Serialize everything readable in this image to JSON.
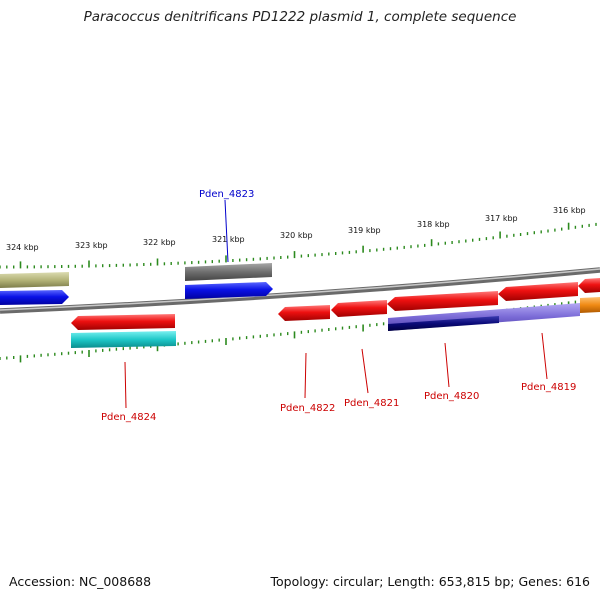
{
  "title": "Paracoccus denitrificans PD1222 plasmid 1, complete sequence",
  "footer": {
    "accession": "Accession: NC_008688",
    "summary": "Topology: circular; Length: 653,815 bp; Genes: 616"
  },
  "scale_labels": [
    "324 kbp",
    "323 kbp",
    "322 kbp",
    "321 kbp",
    "320 kbp",
    "319 kbp",
    "318 kbp",
    "317 kbp",
    "316 kbp"
  ],
  "gene_labels": [
    {
      "text": "Pden_4823",
      "color": "#0000cc"
    },
    {
      "text": "Pden_4824",
      "color": "#cc0000"
    },
    {
      "text": "Pden_4822",
      "color": "#cc0000"
    },
    {
      "text": "Pden_4821",
      "color": "#cc0000"
    },
    {
      "text": "Pden_4820",
      "color": "#cc0000"
    },
    {
      "text": "Pden_4819",
      "color": "#cc0000"
    }
  ],
  "colors": {
    "forward_cds": "#0a12e6",
    "reverse_cds": "#ee1111",
    "backbone": "#8a8a8a",
    "tick": "#2c8a1e",
    "cyan_feature": "#1ec8c8",
    "olive_feature": "#b4b478",
    "gray_feature": "#6e6e6e",
    "purple_feature": "#7a6ad6",
    "navy_feature": "#0a0a78",
    "orange_feature": "#f08a14"
  }
}
